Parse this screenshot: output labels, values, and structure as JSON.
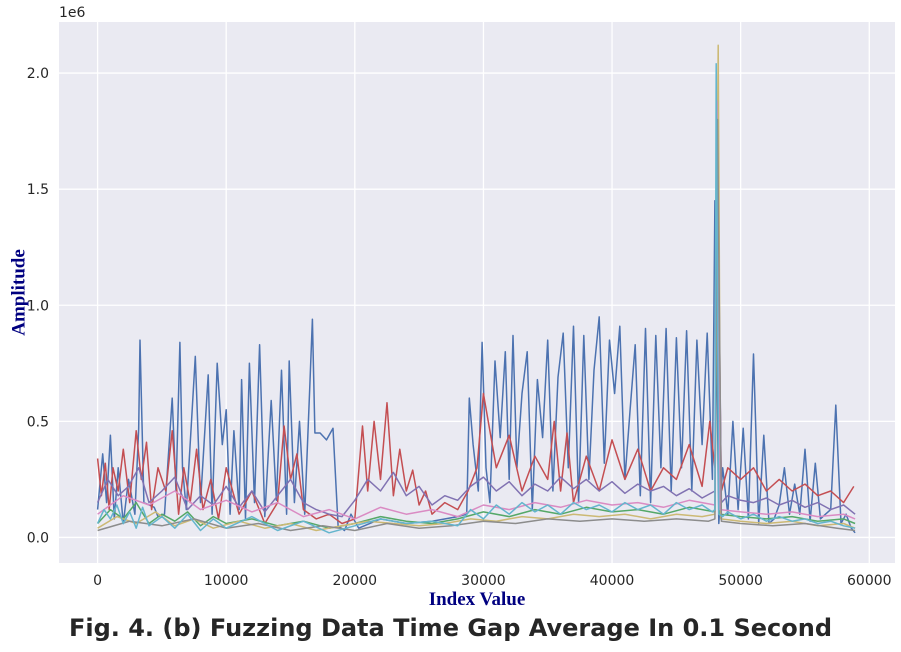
{
  "caption": "Fig. 4. (b) Fuzzing Data Time Gap Average In 0.1 Second",
  "chart_data": {
    "type": "line",
    "title": "",
    "xlabel": "Index Value",
    "ylabel": "Amplitude",
    "offset_text": "1e6",
    "xlim": [
      -3000,
      62000
    ],
    "ylim": [
      -110000,
      2220000
    ],
    "xticks": [
      0,
      10000,
      20000,
      30000,
      40000,
      50000,
      60000
    ],
    "xtick_labels": [
      "0",
      "10000",
      "20000",
      "30000",
      "40000",
      "50000",
      "60000"
    ],
    "yticks": [
      0,
      500000,
      1000000,
      1500000,
      2000000
    ],
    "ytick_labels": [
      "0.0",
      "0.5",
      "1.0",
      "1.5",
      "2.0"
    ],
    "grid": true,
    "background_color": "#EAEAF2",
    "grid_color": "#FFFFFF",
    "series": [
      {
        "color": "#4C72B0",
        "x": [
          0,
          400,
          700,
          1000,
          1300,
          1600,
          2000,
          2400,
          2900,
          3200,
          3300,
          3600,
          4400,
          4700,
          5200,
          5800,
          6100,
          6400,
          6600,
          6900,
          7300,
          7600,
          8000,
          8600,
          8900,
          9300,
          9700,
          10000,
          10300,
          10600,
          11000,
          11200,
          11500,
          11800,
          12200,
          12600,
          13000,
          13500,
          13900,
          14300,
          14700,
          14900,
          15300,
          15700,
          16100,
          16500,
          16700,
          16900,
          17300,
          17800,
          18300,
          18700,
          19200,
          19700,
          20300,
          22000,
          24000,
          26000,
          28000,
          28700,
          28900,
          29200,
          29600,
          29900,
          30200,
          30500,
          30900,
          31300,
          31700,
          32000,
          32300,
          32600,
          33000,
          33400,
          33800,
          34200,
          34600,
          35000,
          35400,
          35800,
          36200,
          36600,
          37000,
          37400,
          37800,
          38200,
          38600,
          39000,
          39400,
          39800,
          40200,
          40600,
          41000,
          41400,
          41800,
          42200,
          42600,
          43000,
          43400,
          43800,
          44200,
          44600,
          45000,
          45400,
          45800,
          46200,
          46600,
          47000,
          47400,
          47800,
          48000,
          48300,
          48600,
          49000,
          49400,
          49800,
          50200,
          50600,
          51000,
          51400,
          51800,
          52200,
          52600,
          53000,
          53400,
          53800,
          54200,
          54600,
          55000,
          55400,
          55800,
          56200,
          56600,
          57000,
          57400,
          57800,
          58200,
          58600,
          58900
        ],
        "y": [
          120000,
          360000,
          150000,
          440000,
          80000,
          300000,
          60000,
          250000,
          100000,
          470000,
          850000,
          150000,
          130000,
          90000,
          100000,
          600000,
          200000,
          840000,
          300000,
          120000,
          500000,
          780000,
          150000,
          700000,
          100000,
          750000,
          400000,
          550000,
          100000,
          460000,
          120000,
          680000,
          80000,
          750000,
          150000,
          830000,
          90000,
          590000,
          160000,
          720000,
          100000,
          760000,
          150000,
          500000,
          100000,
          650000,
          940000,
          450000,
          450000,
          420000,
          470000,
          50000,
          30000,
          100000,
          40000,
          80000,
          60000,
          70000,
          90000,
          100000,
          600000,
          400000,
          200000,
          840000,
          300000,
          150000,
          760000,
          430000,
          800000,
          250000,
          870000,
          300000,
          620000,
          800000,
          120000,
          680000,
          430000,
          850000,
          200000,
          690000,
          880000,
          300000,
          910000,
          150000,
          870000,
          250000,
          720000,
          950000,
          320000,
          850000,
          620000,
          910000,
          250000,
          550000,
          830000,
          180000,
          900000,
          150000,
          870000,
          300000,
          900000,
          200000,
          860000,
          300000,
          890000,
          200000,
          850000,
          400000,
          880000,
          250000,
          1450000,
          60000,
          300000,
          100000,
          500000,
          120000,
          470000,
          80000,
          790000,
          60000,
          440000,
          60000,
          80000,
          140000,
          300000,
          100000,
          230000,
          100000,
          380000,
          70000,
          320000,
          80000,
          100000,
          120000,
          570000,
          60000,
          100000,
          40000,
          20000
        ]
      },
      {
        "color": "#C44E52",
        "x": [
          0,
          300,
          600,
          900,
          1200,
          1600,
          2000,
          2500,
          3000,
          3400,
          3800,
          4200,
          4700,
          5300,
          5800,
          6300,
          6700,
          7200,
          7700,
          8200,
          8800,
          9400,
          10000,
          11000,
          12000,
          13000,
          14000,
          14500,
          15000,
          15500,
          16000,
          17000,
          18000,
          19000,
          20000,
          20600,
          21000,
          21500,
          22000,
          22500,
          23000,
          23500,
          24000,
          24500,
          25000,
          25500,
          26000,
          27000,
          28000,
          28800,
          29500,
          30000,
          31000,
          32000,
          33000,
          34000,
          35000,
          35500,
          36000,
          36500,
          37000,
          38000,
          39000,
          40000,
          41000,
          42000,
          43000,
          44000,
          45000,
          46000,
          47000,
          47600,
          48000,
          48200,
          48500,
          49000,
          50000,
          51000,
          52000,
          53000,
          54000,
          55000,
          56000,
          57000,
          58000,
          58800
        ],
        "y": [
          340000,
          180000,
          320000,
          120000,
          300000,
          200000,
          380000,
          150000,
          460000,
          250000,
          410000,
          120000,
          300000,
          200000,
          460000,
          100000,
          300000,
          150000,
          380000,
          120000,
          250000,
          80000,
          300000,
          100000,
          200000,
          60000,
          150000,
          480000,
          250000,
          360000,
          120000,
          80000,
          100000,
          60000,
          80000,
          480000,
          200000,
          500000,
          250000,
          580000,
          180000,
          380000,
          200000,
          290000,
          140000,
          200000,
          100000,
          150000,
          120000,
          200000,
          300000,
          620000,
          300000,
          440000,
          200000,
          350000,
          250000,
          500000,
          200000,
          450000,
          150000,
          350000,
          200000,
          420000,
          250000,
          380000,
          200000,
          300000,
          250000,
          400000,
          220000,
          500000,
          300000,
          1420000,
          200000,
          300000,
          250000,
          300000,
          200000,
          250000,
          200000,
          230000,
          180000,
          200000,
          150000,
          220000
        ]
      },
      {
        "color": "#8172B2",
        "x": [
          0,
          800,
          1600,
          2400,
          3200,
          4000,
          5000,
          6000,
          7000,
          8000,
          9000,
          10000,
          11000,
          12000,
          13000,
          14000,
          15000,
          16000,
          17000,
          18000,
          19000,
          20000,
          21000,
          22000,
          23000,
          24000,
          25000,
          26000,
          27000,
          28000,
          29000,
          30000,
          31000,
          32000,
          33000,
          34000,
          35000,
          36000,
          37000,
          38000,
          39000,
          40000,
          41000,
          42000,
          43000,
          44000,
          45000,
          46000,
          47000,
          48000,
          48200,
          48500,
          49000,
          50000,
          51000,
          52000,
          53000,
          54000,
          55000,
          56000,
          57000,
          58000,
          58900
        ],
        "y": [
          150000,
          250000,
          180000,
          220000,
          300000,
          150000,
          200000,
          260000,
          120000,
          180000,
          140000,
          220000,
          130000,
          200000,
          110000,
          180000,
          250000,
          150000,
          120000,
          100000,
          90000,
          160000,
          250000,
          200000,
          280000,
          180000,
          220000,
          140000,
          180000,
          160000,
          220000,
          260000,
          200000,
          240000,
          180000,
          230000,
          200000,
          260000,
          210000,
          250000,
          200000,
          240000,
          190000,
          230000,
          200000,
          220000,
          180000,
          210000,
          170000,
          200000,
          1680000,
          150000,
          180000,
          160000,
          150000,
          170000,
          140000,
          160000,
          130000,
          150000,
          120000,
          140000,
          100000
        ]
      },
      {
        "color": "#55A868",
        "x": [
          0,
          1000,
          2000,
          3000,
          4000,
          5000,
          6000,
          7000,
          8000,
          9000,
          10000,
          12000,
          14000,
          16000,
          18000,
          20000,
          22000,
          24000,
          26000,
          28000,
          30000,
          32000,
          34000,
          36000,
          38000,
          40000,
          42000,
          44000,
          46000,
          48000,
          48200,
          48400,
          50000,
          52000,
          54000,
          56000,
          58000,
          58900
        ],
        "y": [
          60000,
          120000,
          80000,
          150000,
          60000,
          100000,
          70000,
          110000,
          50000,
          90000,
          60000,
          80000,
          50000,
          70000,
          40000,
          60000,
          90000,
          70000,
          60000,
          80000,
          110000,
          90000,
          120000,
          100000,
          130000,
          110000,
          120000,
          100000,
          130000,
          110000,
          1500000,
          100000,
          90000,
          80000,
          90000,
          70000,
          80000,
          60000
        ]
      },
      {
        "color": "#CCB974",
        "x": [
          0,
          1500,
          3000,
          4500,
          6000,
          7500,
          9000,
          11000,
          13000,
          15000,
          17000,
          19000,
          21000,
          23000,
          25000,
          27000,
          29000,
          31000,
          33000,
          35000,
          37000,
          39000,
          41000,
          43000,
          45000,
          47000,
          48000,
          48250,
          48450,
          50000,
          52000,
          54000,
          56000,
          58000,
          58900
        ],
        "y": [
          40000,
          90000,
          60000,
          110000,
          50000,
          80000,
          40000,
          70000,
          40000,
          60000,
          30000,
          50000,
          70000,
          60000,
          50000,
          60000,
          80000,
          70000,
          90000,
          80000,
          100000,
          90000,
          100000,
          80000,
          100000,
          90000,
          100000,
          2120000,
          80000,
          70000,
          60000,
          70000,
          50000,
          60000,
          40000
        ]
      },
      {
        "color": "#DA8BC3",
        "x": [
          0,
          2000,
          4000,
          6000,
          8000,
          10000,
          12000,
          14000,
          16000,
          18000,
          20000,
          22000,
          24000,
          26000,
          28000,
          30000,
          32000,
          34000,
          36000,
          38000,
          40000,
          42000,
          44000,
          46000,
          48000,
          48150,
          48400,
          50000,
          52000,
          54000,
          56000,
          58000,
          58900
        ],
        "y": [
          100000,
          180000,
          140000,
          200000,
          120000,
          160000,
          110000,
          150000,
          90000,
          120000,
          80000,
          130000,
          100000,
          120000,
          90000,
          140000,
          120000,
          150000,
          130000,
          160000,
          140000,
          150000,
          130000,
          160000,
          140000,
          1880000,
          120000,
          110000,
          100000,
          110000,
          90000,
          100000,
          80000
        ]
      },
      {
        "color": "#8C8C8C",
        "x": [
          0,
          2500,
          5000,
          7500,
          10000,
          12500,
          15000,
          17500,
          20000,
          22500,
          25000,
          27500,
          30000,
          32500,
          35000,
          37500,
          40000,
          42500,
          45000,
          47500,
          48000,
          48200,
          48500,
          50000,
          52500,
          55000,
          57500,
          58900
        ],
        "y": [
          30000,
          70000,
          50000,
          80000,
          40000,
          60000,
          30000,
          50000,
          30000,
          60000,
          40000,
          50000,
          70000,
          60000,
          80000,
          70000,
          80000,
          70000,
          80000,
          70000,
          80000,
          1800000,
          70000,
          60000,
          50000,
          60000,
          40000,
          30000
        ]
      },
      {
        "color": "#64B5CD",
        "x": [
          0,
          500,
          1000,
          1500,
          2000,
          2500,
          3000,
          3500,
          4000,
          5000,
          6000,
          7000,
          8000,
          9000,
          10000,
          12000,
          14000,
          16000,
          18000,
          20000,
          22000,
          24000,
          26000,
          28000,
          29000,
          30000,
          31000,
          32000,
          33000,
          34000,
          35000,
          36000,
          37000,
          38000,
          39000,
          40000,
          41000,
          42000,
          43000,
          44000,
          45000,
          46000,
          47000,
          47800,
          48000,
          48100,
          48300,
          48600,
          49000,
          50000,
          51000,
          52000,
          53000,
          54000,
          55000,
          56000,
          57000,
          58000,
          58900
        ],
        "y": [
          60000,
          120000,
          80000,
          140000,
          60000,
          110000,
          40000,
          130000,
          50000,
          90000,
          40000,
          100000,
          30000,
          80000,
          40000,
          90000,
          30000,
          70000,
          20000,
          50000,
          80000,
          60000,
          70000,
          50000,
          120000,
          80000,
          140000,
          100000,
          150000,
          110000,
          140000,
          100000,
          150000,
          120000,
          140000,
          110000,
          150000,
          120000,
          140000,
          100000,
          150000,
          120000,
          140000,
          110000,
          120000,
          2040000,
          100000,
          90000,
          110000,
          80000,
          100000,
          70000,
          90000,
          70000,
          80000,
          60000,
          70000,
          50000,
          40000
        ]
      }
    ]
  }
}
